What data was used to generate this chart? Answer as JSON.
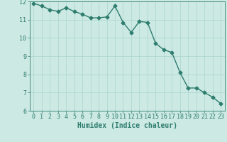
{
  "x": [
    0,
    1,
    2,
    3,
    4,
    5,
    6,
    7,
    8,
    9,
    10,
    11,
    12,
    13,
    14,
    15,
    16,
    17,
    18,
    19,
    20,
    21,
    22,
    23
  ],
  "y": [
    11.9,
    11.75,
    11.55,
    11.45,
    11.65,
    11.45,
    11.3,
    11.1,
    11.1,
    11.15,
    11.75,
    10.85,
    10.3,
    10.9,
    10.85,
    9.7,
    9.35,
    9.2,
    8.1,
    7.25,
    7.25,
    7.0,
    6.75,
    6.4
  ],
  "line_color": "#2e7d6e",
  "marker": "D",
  "marker_size": 2.5,
  "bg_color": "#cce9e4",
  "grid_color": "#aad4ce",
  "xlabel": "Humidex (Indice chaleur)",
  "ylim": [
    6,
    12
  ],
  "xlim": [
    -0.5,
    23.5
  ],
  "yticks": [
    6,
    7,
    8,
    9,
    10,
    11,
    12
  ],
  "xticks": [
    0,
    1,
    2,
    3,
    4,
    5,
    6,
    7,
    8,
    9,
    10,
    11,
    12,
    13,
    14,
    15,
    16,
    17,
    18,
    19,
    20,
    21,
    22,
    23
  ],
  "tick_color": "#2e7d6e",
  "label_color": "#2e7d6e",
  "xlabel_fontsize": 7,
  "tick_fontsize": 6,
  "line_width": 1.0
}
